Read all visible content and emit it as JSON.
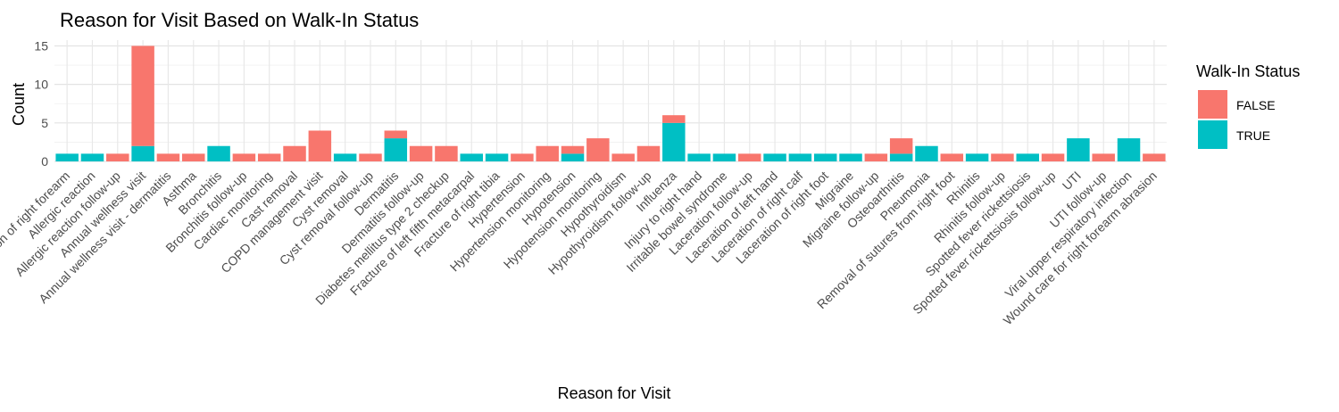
{
  "chart_data": {
    "type": "bar",
    "stacked": true,
    "title": "Reason for Visit Based on Walk-In Status",
    "xlabel": "Reason for Visit",
    "ylabel": "Count",
    "ylim": [
      0,
      15.75
    ],
    "yticks": [
      0,
      5,
      10,
      15
    ],
    "grid": true,
    "legend": {
      "title": "Walk-In Status",
      "placement": "right"
    },
    "categories": [
      "Abrasion of right forearm",
      "Allergic reaction",
      "Allergic reaction follow-up",
      "Annual wellness visit",
      "Annual wellness visit - dermatitis",
      "Asthma",
      "Bronchitis",
      "Bronchitis follow-up",
      "Cardiac monitoring",
      "Cast removal",
      "COPD management visit",
      "Cyst removal",
      "Cyst removal follow-up",
      "Dermatitis",
      "Dermatitis follow-up",
      "Diabetes mellitus type 2 checkup",
      "Fracture of left fifth metacarpal",
      "Fracture of right tibia",
      "Hypertension",
      "Hypertension monitoring",
      "Hypotension",
      "Hypotension monitoring",
      "Hypothyroidism",
      "Hypothyroidism follow-up",
      "Influenza",
      "Injury to right hand",
      "Irritable bowel syndrome",
      "Laceration follow-up",
      "Laceration of left hand",
      "Laceration of right calf",
      "Laceration of right foot",
      "Migraine",
      "Migraine follow-up",
      "Osteoarthritis",
      "Pneumonia",
      "Removal of sutures from right foot",
      "Rhinitis",
      "Rhinitis follow-up",
      "Spotted fever rickettsiosis",
      "Spotted fever rickettsiosis follow-up",
      "UTI",
      "UTI follow-up",
      "Viral upper respiratory infection",
      "Wound care for right forearm abrasion"
    ],
    "series": [
      {
        "name": "FALSE",
        "color": "#F8766D",
        "values": [
          0,
          0,
          1,
          13,
          1,
          1,
          0,
          1,
          1,
          2,
          4,
          0,
          1,
          1,
          2,
          2,
          0,
          0,
          1,
          2,
          1,
          3,
          1,
          2,
          1,
          0,
          0,
          1,
          0,
          0,
          0,
          0,
          1,
          2,
          0,
          1,
          0,
          1,
          0,
          1,
          0,
          1,
          0,
          1
        ]
      },
      {
        "name": "TRUE",
        "color": "#00BFC4",
        "values": [
          1,
          1,
          0,
          2,
          0,
          0,
          2,
          0,
          0,
          0,
          0,
          1,
          0,
          3,
          0,
          0,
          1,
          1,
          0,
          0,
          1,
          0,
          0,
          0,
          5,
          1,
          1,
          0,
          1,
          1,
          1,
          1,
          0,
          1,
          2,
          0,
          1,
          0,
          1,
          0,
          3,
          0,
          3,
          0
        ]
      }
    ]
  }
}
